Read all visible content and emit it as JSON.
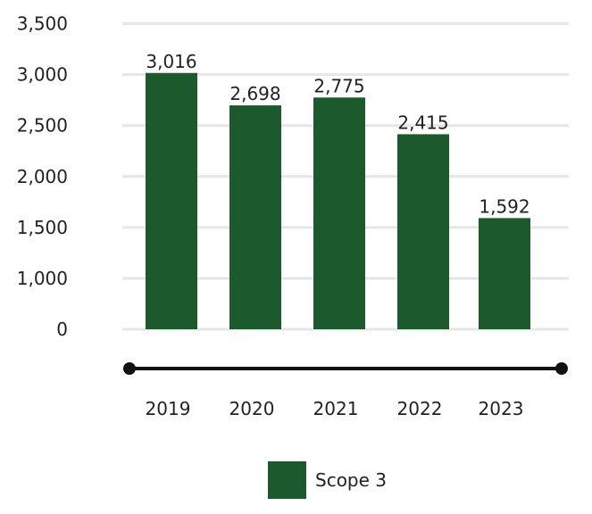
{
  "chart_data": {
    "type": "bar",
    "categories": [
      "2019",
      "2020",
      "2021",
      "2022",
      "2023"
    ],
    "series": [
      {
        "name": "Scope 3",
        "values": [
          3016,
          2698,
          2775,
          2415,
          1592
        ],
        "color": "#1c5a2e"
      }
    ],
    "data_labels": [
      "3,016",
      "2,698",
      "2,775",
      "2,415",
      "1,592"
    ],
    "y_ticks": [
      0,
      1000,
      1500,
      2000,
      2500,
      3000,
      3500
    ],
    "y_tick_labels": [
      "0",
      "1,000",
      "1,500",
      "2,000",
      "2,500",
      "3,000",
      "3,500"
    ],
    "ylim": [
      0,
      3500
    ],
    "y_axis_note": "axis skips 500 (labels jump from 0 to 1,000)",
    "grid": true,
    "legend_position": "bottom-center",
    "title": "",
    "xlabel": "",
    "ylabel": ""
  },
  "legend": {
    "label": "Scope 3"
  },
  "colors": {
    "bar": "#1c5a2e",
    "grid": "#e6e6e6",
    "axis_line": "#111111"
  }
}
